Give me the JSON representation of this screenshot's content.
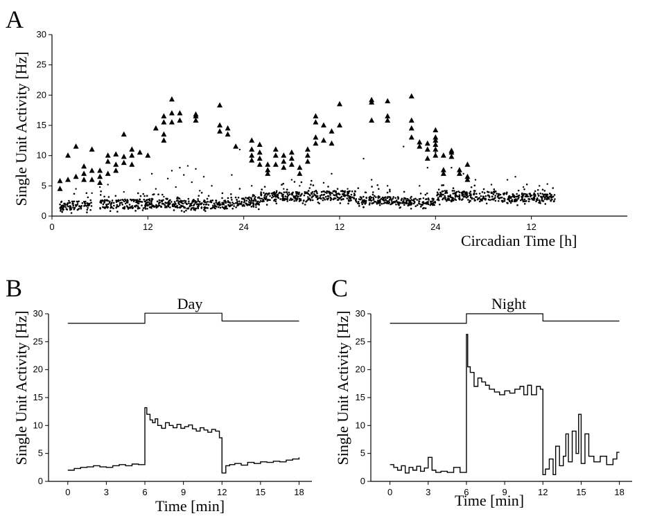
{
  "chart_data": [
    {
      "panel": "A",
      "type": "scatter",
      "xlabel": "Circadian Time [h]",
      "ylabel": "Single Unit Activity [Hz]",
      "x_tick_labels": [
        "0",
        "12",
        "24",
        "12",
        "24",
        "12"
      ],
      "y_ticks": [
        0,
        5,
        10,
        15,
        20,
        25,
        30
      ],
      "ylim": [
        0,
        30
      ],
      "xlim": [
        0,
        72
      ],
      "grid": false,
      "series": [
        {
          "marker": "dot",
          "background_bands": [
            [
              1,
              5,
              1,
              2.5
            ],
            [
              6,
              12,
              1.2,
              2.8
            ],
            [
              12,
              16,
              1.4,
              3
            ],
            [
              16,
              22,
              1.2,
              2.6
            ],
            [
              22,
              26,
              1.6,
              3.2
            ],
            [
              26,
              32,
              2.4,
              4
            ],
            [
              32,
              38,
              2.6,
              4.2
            ],
            [
              38,
              43,
              2,
              3.2
            ],
            [
              43,
              48,
              1.8,
              3
            ],
            [
              48,
              56,
              2.5,
              4.2
            ],
            [
              56,
              63,
              2.4,
              3.8
            ]
          ],
          "scattered_dots": [
            [
              6,
              4.8
            ],
            [
              7,
              5.2
            ],
            [
              9,
              4
            ],
            [
              11,
              6
            ],
            [
              12.5,
              7
            ],
            [
              13,
              4.5
            ],
            [
              14.5,
              6.2
            ],
            [
              15,
              7.5
            ],
            [
              16,
              8
            ],
            [
              17,
              8.3
            ],
            [
              18,
              7.8
            ],
            [
              19,
              6.5
            ],
            [
              20,
              5
            ],
            [
              14,
              3.2
            ],
            [
              16.5,
              6.8
            ],
            [
              17.5,
              5.6
            ],
            [
              15.5,
              4.8
            ],
            [
              18.5,
              4.2
            ],
            [
              22.5,
              6.8
            ],
            [
              23.5,
              11
            ],
            [
              25,
              5
            ],
            [
              27,
              3.5
            ],
            [
              29,
              4.5
            ],
            [
              30,
              6
            ],
            [
              31,
              5
            ],
            [
              34,
              5.5
            ],
            [
              35,
              7
            ],
            [
              37,
              4.5
            ],
            [
              39,
              9.5
            ],
            [
              40,
              6
            ],
            [
              42,
              5
            ],
            [
              44,
              11.5
            ],
            [
              46,
              5
            ],
            [
              47,
              8
            ],
            [
              48,
              10.5
            ],
            [
              50,
              8
            ],
            [
              51.5,
              7
            ],
            [
              53,
              6
            ],
            [
              55,
              5.2
            ],
            [
              57,
              6
            ],
            [
              58,
              6.5
            ],
            [
              59,
              4.8
            ],
            [
              61,
              5
            ],
            [
              62,
              5.3
            ],
            [
              3,
              4.5
            ],
            [
              5,
              3.8
            ]
          ]
        },
        {
          "marker": "triangle",
          "values": [
            [
              1,
              4.5
            ],
            [
              1,
              5.8
            ],
            [
              2,
              6
            ],
            [
              2,
              10
            ],
            [
              3,
              6.5
            ],
            [
              3,
              11.5
            ],
            [
              4,
              6
            ],
            [
              4,
              7
            ],
            [
              4,
              8.2
            ],
            [
              5,
              6
            ],
            [
              5,
              7.5
            ],
            [
              5,
              11
            ],
            [
              6,
              5.5
            ],
            [
              6,
              6.5
            ],
            [
              6,
              7.5
            ],
            [
              7,
              7
            ],
            [
              7,
              9
            ],
            [
              7,
              10
            ],
            [
              8,
              7.5
            ],
            [
              8,
              8.5
            ],
            [
              8,
              10.2
            ],
            [
              9,
              8.8
            ],
            [
              9,
              9.8
            ],
            [
              9,
              13.5
            ],
            [
              10,
              8.5
            ],
            [
              10,
              10
            ],
            [
              10,
              11
            ],
            [
              11,
              10.5
            ],
            [
              12,
              10
            ],
            [
              13,
              14.5
            ],
            [
              14,
              12.5
            ],
            [
              14,
              13.5
            ],
            [
              14,
              15.5
            ],
            [
              14,
              16.5
            ],
            [
              15,
              15.5
            ],
            [
              15,
              17
            ],
            [
              15,
              19.3
            ],
            [
              16,
              15.8
            ],
            [
              16,
              17
            ],
            [
              18,
              15.8
            ],
            [
              18,
              16.5
            ],
            [
              18,
              16.8
            ],
            [
              21,
              14
            ],
            [
              21,
              15
            ],
            [
              21,
              18.3
            ],
            [
              22,
              13.5
            ],
            [
              22,
              14.5
            ],
            [
              23,
              11.5
            ],
            [
              25,
              9.2
            ],
            [
              25,
              10
            ],
            [
              25,
              11
            ],
            [
              25,
              12.5
            ],
            [
              26,
              8.5
            ],
            [
              26,
              9.5
            ],
            [
              26,
              10.5
            ],
            [
              26,
              11.8
            ],
            [
              27,
              7
            ],
            [
              27,
              7.6
            ],
            [
              27,
              8.5
            ],
            [
              28,
              8.5
            ],
            [
              28,
              10
            ],
            [
              28,
              11
            ],
            [
              29,
              8
            ],
            [
              29,
              9
            ],
            [
              29,
              10
            ],
            [
              30,
              8.5
            ],
            [
              30,
              9.5
            ],
            [
              30,
              10.5
            ],
            [
              31,
              7
            ],
            [
              31,
              8
            ],
            [
              32,
              9
            ],
            [
              32,
              10
            ],
            [
              32,
              11
            ],
            [
              33,
              12
            ],
            [
              33,
              13
            ],
            [
              33,
              15.5
            ],
            [
              33,
              16.5
            ],
            [
              34,
              12.5
            ],
            [
              34,
              15
            ],
            [
              35,
              12
            ],
            [
              35,
              14
            ],
            [
              36,
              15
            ],
            [
              36,
              18.5
            ],
            [
              40,
              15.8
            ],
            [
              40,
              18.8
            ],
            [
              40,
              19.2
            ],
            [
              42,
              15.8
            ],
            [
              42,
              16.5
            ],
            [
              42,
              19
            ],
            [
              45,
              13
            ],
            [
              45,
              14.5
            ],
            [
              45,
              15.8
            ],
            [
              45,
              19.8
            ],
            [
              46,
              11.5
            ],
            [
              46,
              12.2
            ],
            [
              47,
              9.5
            ],
            [
              47,
              11
            ],
            [
              47,
              12
            ],
            [
              48,
              10
            ],
            [
              48,
              11
            ],
            [
              48,
              11.8
            ],
            [
              48,
              12.5
            ],
            [
              48,
              13
            ],
            [
              48,
              14.2
            ],
            [
              49,
              7
            ],
            [
              49,
              7.6
            ],
            [
              49,
              10
            ],
            [
              50,
              9.8
            ],
            [
              50,
              10.5
            ],
            [
              50,
              10.8
            ],
            [
              51,
              7
            ],
            [
              51,
              7.6
            ],
            [
              52,
              6
            ],
            [
              52,
              6.5
            ],
            [
              52,
              8.5
            ]
          ]
        }
      ]
    },
    {
      "panel": "B",
      "type": "line",
      "title": "Day",
      "xlabel": "Time [min]",
      "ylabel": "Single Unit Activity [Hz]",
      "x_ticks": [
        0,
        3,
        6,
        9,
        12,
        15,
        18
      ],
      "y_ticks": [
        0,
        5,
        10,
        15,
        20,
        25,
        30
      ],
      "xlim": [
        -1.5,
        19
      ],
      "ylim": [
        0,
        30
      ],
      "stimulus_bar": [
        [
          0,
          28.3
        ],
        [
          6,
          28.3
        ],
        [
          6,
          30.1
        ],
        [
          12,
          30.1
        ],
        [
          12,
          28.7
        ],
        [
          18,
          28.7
        ]
      ],
      "series": [
        {
          "shape": "step",
          "x": [
            0,
            0.5,
            1,
            1.5,
            2,
            2.5,
            3,
            3.5,
            4,
            4.5,
            5,
            5.5,
            6,
            6.15,
            6.4,
            6.6,
            6.8,
            7,
            7.3,
            7.6,
            7.9,
            8.2,
            8.5,
            8.8,
            9.1,
            9.4,
            9.7,
            10,
            10.3,
            10.6,
            10.9,
            11.2,
            11.5,
            11.8,
            12,
            12.3,
            12.6,
            13,
            13.5,
            14,
            14.5,
            15,
            15.5,
            16,
            16.5,
            17,
            17.5,
            18
          ],
          "y": [
            2,
            2.3,
            2.5,
            2.6,
            2.8,
            2.6,
            2.5,
            2.8,
            3,
            2.8,
            3.1,
            3,
            13.2,
            12,
            11,
            10.5,
            11.2,
            10,
            9.5,
            10.5,
            10,
            9.6,
            10.2,
            9.5,
            9.8,
            10.1,
            9.4,
            9,
            9.6,
            9.2,
            8.8,
            9.3,
            9,
            7.8,
            1.5,
            2.8,
            3,
            3.2,
            2.9,
            3.4,
            3.2,
            3.5,
            3.4,
            3.6,
            3.5,
            3.8,
            4,
            4.3
          ]
        }
      ]
    },
    {
      "panel": "C",
      "type": "line",
      "title": "Night",
      "xlabel": "Time [min]",
      "ylabel": "Single Unit Activity [Hz]",
      "x_ticks": [
        0,
        3,
        6,
        9,
        12,
        15,
        18
      ],
      "y_ticks": [
        0,
        5,
        10,
        15,
        20,
        25,
        30
      ],
      "xlim": [
        -1.5,
        19
      ],
      "ylim": [
        0,
        30
      ],
      "stimulus_bar": [
        [
          0,
          28.3
        ],
        [
          6,
          28.3
        ],
        [
          6,
          30
        ],
        [
          12,
          30
        ],
        [
          12,
          28.7
        ],
        [
          18,
          28.7
        ]
      ],
      "series": [
        {
          "shape": "step",
          "x": [
            0,
            0.3,
            0.6,
            0.9,
            1.2,
            1.5,
            1.8,
            2.1,
            2.4,
            2.7,
            3,
            3.3,
            3.6,
            4,
            4.5,
            5,
            5.5,
            6,
            6.1,
            6.3,
            6.6,
            6.9,
            7.2,
            7.5,
            7.8,
            8.2,
            8.6,
            9,
            9.4,
            9.8,
            10.2,
            10.5,
            10.8,
            11.1,
            11.5,
            11.8,
            12,
            12.2,
            12.5,
            12.8,
            13,
            13.3,
            13.6,
            13.8,
            14,
            14.3,
            14.6,
            14.8,
            15,
            15.3,
            15.6,
            16,
            16.5,
            17,
            17.5,
            17.8,
            18
          ],
          "y": [
            3,
            2.5,
            2,
            2.8,
            1.5,
            2.5,
            2,
            2.7,
            1.8,
            2.4,
            4.3,
            2,
            1.6,
            1.8,
            1.6,
            2.5,
            1.6,
            26.3,
            20.5,
            19.5,
            17,
            18.5,
            17.8,
            17.2,
            16.5,
            16,
            15.5,
            16.2,
            15.8,
            16.5,
            17,
            15.5,
            17.2,
            15.5,
            17,
            16.5,
            1.2,
            2.2,
            4,
            1.2,
            6.3,
            2.8,
            4.5,
            8.5,
            3.5,
            9,
            5,
            12,
            3.2,
            8.5,
            4.5,
            3.5,
            4.5,
            3,
            4,
            5.2,
            5.2
          ]
        }
      ]
    }
  ]
}
